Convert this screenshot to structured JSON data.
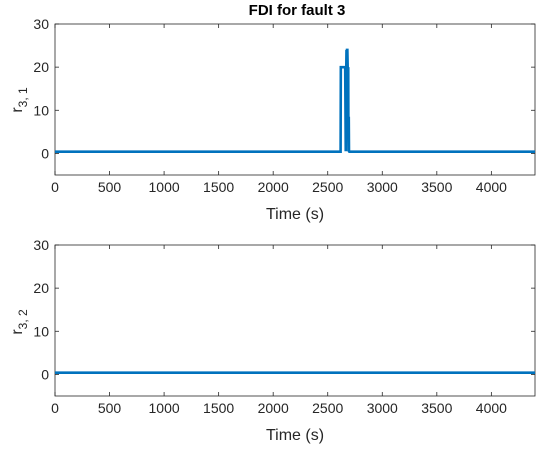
{
  "chart_data": [
    {
      "type": "line",
      "title": "FDI for fault 3",
      "xlabel": "Time (s)",
      "ylabel": {
        "base": "r",
        "sub": "3, 1"
      },
      "xlim": [
        0,
        4400
      ],
      "ylim": [
        -5,
        30
      ],
      "xticks": [
        0,
        500,
        1000,
        1500,
        2000,
        2500,
        3000,
        3500,
        4000
      ],
      "yticks": [
        0,
        10,
        20,
        30
      ],
      "grid": false,
      "color": "#0072BD",
      "series": [
        {
          "x": [
            0,
            2618,
            2620,
            2622,
            2650,
            2660,
            2665,
            2670,
            2672,
            2674,
            2677,
            2680,
            2683,
            2685,
            2688,
            2690,
            2693,
            2695,
            2698,
            2700,
            4400
          ],
          "y": [
            0.4,
            0.4,
            20,
            20,
            20,
            20,
            0.5,
            20,
            24,
            20,
            24,
            24,
            20,
            8.5,
            20,
            0.5,
            8.5,
            0.5,
            0.4,
            0.4,
            0.4
          ]
        }
      ]
    },
    {
      "type": "line",
      "title": "",
      "xlabel": "Time (s)",
      "ylabel": {
        "base": "r",
        "sub": "3, 2"
      },
      "xlim": [
        0,
        4400
      ],
      "ylim": [
        -5,
        30
      ],
      "xticks": [
        0,
        500,
        1000,
        1500,
        2000,
        2500,
        3000,
        3500,
        4000
      ],
      "yticks": [
        0,
        10,
        20,
        30
      ],
      "grid": false,
      "color": "#0072BD",
      "series": [
        {
          "x": [
            0,
            4400
          ],
          "y": [
            0.4,
            0.4
          ]
        }
      ]
    }
  ]
}
